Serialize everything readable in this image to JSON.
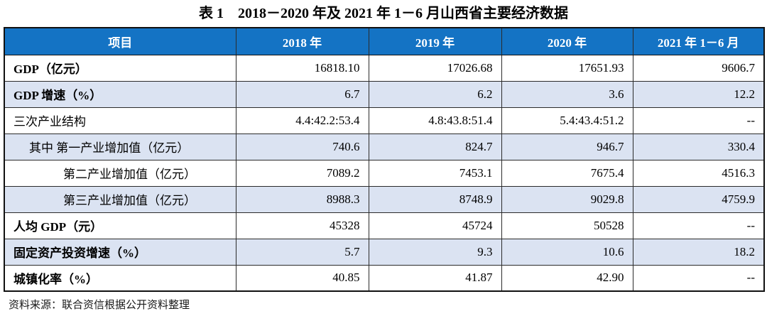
{
  "title": "表 1　2018－2020 年及 2021 年 1－6 月山西省主要经济数据",
  "table": {
    "columns": [
      "项目",
      "2018 年",
      "2019 年",
      "2020 年",
      "2021 年 1－6 月"
    ],
    "rows": [
      {
        "label": "GDP（亿元）",
        "bold": true,
        "indent": 0,
        "values": [
          "16818.10",
          "17026.68",
          "17651.93",
          "9606.7"
        ]
      },
      {
        "label": "GDP 增速（%）",
        "bold": true,
        "indent": 0,
        "values": [
          "6.7",
          "6.2",
          "3.6",
          "12.2"
        ]
      },
      {
        "label": "三次产业结构",
        "bold": false,
        "indent": 0,
        "values": [
          "4.4:42.2:53.4",
          "4.8:43.8:51.4",
          "5.4:43.4:51.2",
          "--"
        ]
      },
      {
        "label": "其中 第一产业增加值（亿元）",
        "bold": false,
        "indent": 1,
        "values": [
          "740.6",
          "824.7",
          "946.7",
          "330.4"
        ]
      },
      {
        "label": "第二产业增加值（亿元）",
        "bold": false,
        "indent": 2,
        "values": [
          "7089.2",
          "7453.1",
          "7675.4",
          "4516.3"
        ]
      },
      {
        "label": "第三产业增加值（亿元）",
        "bold": false,
        "indent": 2,
        "values": [
          "8988.3",
          "8748.9",
          "9029.8",
          "4759.9"
        ]
      },
      {
        "label": "人均 GDP（元）",
        "bold": true,
        "indent": 0,
        "values": [
          "45328",
          "45724",
          "50528",
          "--"
        ]
      },
      {
        "label": "固定资产投资增速（%）",
        "bold": true,
        "indent": 0,
        "values": [
          "5.7",
          "9.3",
          "10.6",
          "18.2"
        ]
      },
      {
        "label": "城镇化率（%）",
        "bold": true,
        "indent": 0,
        "values": [
          "40.85",
          "41.87",
          "42.90",
          "--"
        ]
      }
    ]
  },
  "footer": {
    "source": "资料来源：联合资信根据公开资料整理"
  },
  "colors": {
    "header_bg": "#1473C4",
    "alt_row_bg": "#DBE3F2",
    "border": "#2b2b2b",
    "header_text": "#ffffff"
  }
}
